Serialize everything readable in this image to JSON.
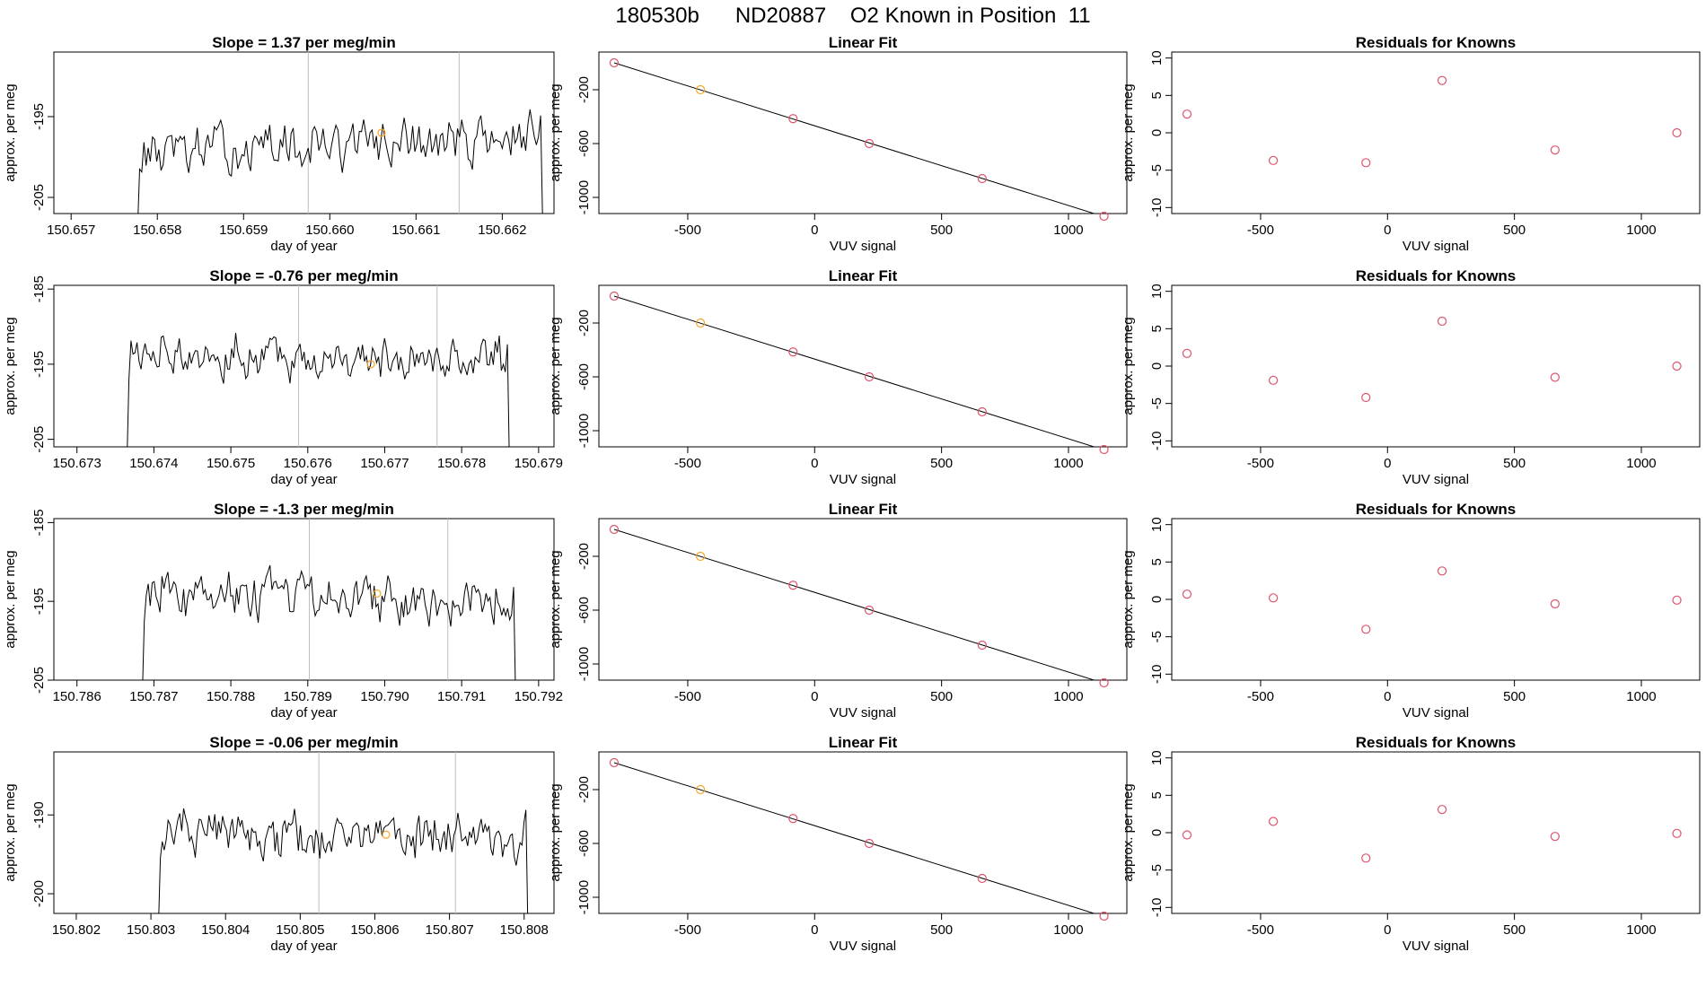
{
  "title": "180530b      ND20887    O2 Known in Position  11",
  "colors": {
    "trace": "#000000",
    "vline": "#bebebe",
    "fit_line": "#000000",
    "known_point": "#df536b",
    "highlight_point": "#f5a623"
  },
  "chart_data": [
    {
      "type": "line",
      "title": "Slope =  1.37  per meg/min",
      "xlabel": "day of year",
      "ylabel": "approx. per meg",
      "xlim": [
        150.6568,
        150.6626
      ],
      "ylim": [
        -207,
        -187
      ],
      "xticks": [
        "150.657",
        "150.658",
        "150.659",
        "150.660",
        "150.661",
        "150.662"
      ],
      "xtick_values": [
        150.657,
        150.658,
        150.659,
        150.66,
        150.661,
        150.662
      ],
      "yticks": [
        "-205",
        "-195"
      ],
      "ytick_values": [
        -205,
        -195
      ],
      "vlines": [
        150.65975,
        150.6615
      ],
      "trace_start": 150.65777,
      "trace_end": 150.66247,
      "trace_mean": -198.5,
      "trace_rise": 1.0,
      "highlight": {
        "x": 150.6606,
        "y": -197.0
      }
    },
    {
      "type": "line",
      "title": "Slope =  -0.76  per meg/min",
      "xlabel": "day of year",
      "ylabel": "approx. per meg",
      "xlim": [
        150.6727,
        150.6792
      ],
      "ylim": [
        -206,
        -184.5
      ],
      "xticks": [
        "150.673",
        "150.674",
        "150.675",
        "150.676",
        "150.677",
        "150.678",
        "150.679"
      ],
      "xtick_values": [
        150.673,
        150.674,
        150.675,
        150.676,
        150.677,
        150.678,
        150.679
      ],
      "yticks": [
        "-205",
        "-195",
        "-185"
      ],
      "ytick_values": [
        -205,
        -195,
        -185
      ],
      "vlines": [
        150.67588,
        150.67768
      ],
      "trace_start": 150.67365,
      "trace_end": 150.67862,
      "trace_mean": -194.0,
      "trace_rise": -0.4,
      "highlight": {
        "x": 150.67682,
        "y": -195.0
      }
    },
    {
      "type": "line",
      "title": "Slope =  -1.3  per meg/min",
      "xlabel": "day of year",
      "ylabel": "approx. per meg",
      "xlim": [
        150.7857,
        150.7922
      ],
      "ylim": [
        -205,
        -184.5
      ],
      "xticks": [
        "150.786",
        "150.787",
        "150.788",
        "150.789",
        "150.790",
        "150.791",
        "150.792"
      ],
      "xtick_values": [
        150.786,
        150.787,
        150.788,
        150.789,
        150.79,
        150.791,
        150.792
      ],
      "yticks": [
        "-205",
        "-195",
        "-185"
      ],
      "ytick_values": [
        -205,
        -195,
        -185
      ],
      "vlines": [
        150.78902,
        150.79082
      ],
      "trace_start": 150.78685,
      "trace_end": 150.7917,
      "trace_mean": -194.5,
      "trace_rise": -0.8,
      "highlight": {
        "x": 150.7899,
        "y": -194.0
      }
    },
    {
      "type": "line",
      "title": "Slope =  -0.06  per meg/min",
      "xlabel": "day of year",
      "ylabel": "approx. per meg",
      "xlim": [
        150.8017,
        150.8084
      ],
      "ylim": [
        -202.5,
        -182
      ],
      "xticks": [
        "150.802",
        "150.803",
        "150.804",
        "150.805",
        "150.806",
        "150.807",
        "150.808"
      ],
      "xtick_values": [
        150.802,
        150.803,
        150.804,
        150.805,
        150.806,
        150.807,
        150.808
      ],
      "yticks": [
        "-200",
        "-190"
      ],
      "ytick_values": [
        -200,
        -190
      ],
      "vlines": [
        150.80525,
        150.80708
      ],
      "trace_start": 150.8031,
      "trace_end": 150.80805,
      "trace_mean": -192.5,
      "trace_rise": 0.0,
      "highlight": {
        "x": 150.80615,
        "y": -192.5
      }
    },
    {
      "type": "scatter",
      "title": "Linear Fit",
      "xlabel": "VUV signal",
      "ylabel": "approx. per meg",
      "xlim": [
        -850,
        1230
      ],
      "ylim": [
        -1120,
        80
      ],
      "xticks": [
        "-500",
        "0",
        "500",
        "1000"
      ],
      "xtick_values": [
        -500,
        0,
        500,
        1000
      ],
      "yticks": [
        "-1000",
        "-600",
        "-200"
      ],
      "ytick_values": [
        -1000,
        -600,
        -200
      ],
      "x": [
        -790,
        -450,
        -85,
        215,
        660,
        1140
      ],
      "y": [
        0,
        -200,
        -415,
        -600,
        -860,
        -1140
      ],
      "highlight_index": 1,
      "fit": {
        "x": [
          -790,
          1160
        ],
        "y": [
          0,
          -1155
        ]
      }
    },
    {
      "type": "scatter",
      "title": "Linear Fit",
      "xlabel": "VUV signal",
      "ylabel": "approx. per meg",
      "xlim": [
        -850,
        1230
      ],
      "ylim": [
        -1120,
        80
      ],
      "xticks": [
        "-500",
        "0",
        "500",
        "1000"
      ],
      "xtick_values": [
        -500,
        0,
        500,
        1000
      ],
      "yticks": [
        "-1000",
        "-600",
        "-200"
      ],
      "ytick_values": [
        -1000,
        -600,
        -200
      ],
      "x": [
        -790,
        -450,
        -85,
        215,
        660,
        1140
      ],
      "y": [
        0,
        -200,
        -415,
        -600,
        -860,
        -1140
      ],
      "highlight_index": 1,
      "fit": {
        "x": [
          -790,
          1160
        ],
        "y": [
          0,
          -1155
        ]
      }
    },
    {
      "type": "scatter",
      "title": "Linear Fit",
      "xlabel": "VUV signal",
      "ylabel": "approx. per meg",
      "xlim": [
        -850,
        1230
      ],
      "ylim": [
        -1120,
        80
      ],
      "xticks": [
        "-500",
        "0",
        "500",
        "1000"
      ],
      "xtick_values": [
        -500,
        0,
        500,
        1000
      ],
      "yticks": [
        "-1000",
        "-600",
        "-200"
      ],
      "ytick_values": [
        -1000,
        -600,
        -200
      ],
      "x": [
        -790,
        -450,
        -85,
        215,
        660,
        1140
      ],
      "y": [
        0,
        -200,
        -415,
        -600,
        -860,
        -1140
      ],
      "highlight_index": 1,
      "fit": {
        "x": [
          -790,
          1160
        ],
        "y": [
          0,
          -1155
        ]
      }
    },
    {
      "type": "scatter",
      "title": "Linear Fit",
      "xlabel": "VUV signal",
      "ylabel": "approx. per meg",
      "xlim": [
        -850,
        1230
      ],
      "ylim": [
        -1120,
        80
      ],
      "xticks": [
        "-500",
        "0",
        "500",
        "1000"
      ],
      "xtick_values": [
        -500,
        0,
        500,
        1000
      ],
      "yticks": [
        "-1000",
        "-600",
        "-200"
      ],
      "ytick_values": [
        -1000,
        -600,
        -200
      ],
      "x": [
        -790,
        -450,
        -85,
        215,
        660,
        1140
      ],
      "y": [
        0,
        -200,
        -415,
        -600,
        -860,
        -1140
      ],
      "highlight_index": 1,
      "fit": {
        "x": [
          -790,
          1160
        ],
        "y": [
          0,
          -1155
        ]
      }
    },
    {
      "type": "scatter",
      "title": "Residuals for Knowns",
      "xlabel": "VUV signal",
      "ylabel": "approx. per meg",
      "xlim": [
        -850,
        1230
      ],
      "ylim": [
        -10.8,
        10.8
      ],
      "xticks": [
        "-500",
        "0",
        "500",
        "1000"
      ],
      "xtick_values": [
        -500,
        0,
        500,
        1000
      ],
      "yticks": [
        "-10",
        "-5",
        "0",
        "5",
        "10"
      ],
      "ytick_values": [
        -10,
        -5,
        0,
        5,
        10
      ],
      "x": [
        -790,
        -450,
        -85,
        215,
        660,
        1140
      ],
      "y": [
        2.5,
        -3.7,
        -4.0,
        7.0,
        -2.3,
        0.0
      ]
    },
    {
      "type": "scatter",
      "title": "Residuals for Knowns",
      "xlabel": "VUV signal",
      "ylabel": "approx. per meg",
      "xlim": [
        -850,
        1230
      ],
      "ylim": [
        -10.8,
        10.8
      ],
      "xticks": [
        "-500",
        "0",
        "500",
        "1000"
      ],
      "xtick_values": [
        -500,
        0,
        500,
        1000
      ],
      "yticks": [
        "-10",
        "-5",
        "0",
        "5",
        "10"
      ],
      "ytick_values": [
        -10,
        -5,
        0,
        5,
        10
      ],
      "x": [
        -790,
        -450,
        -85,
        215,
        660,
        1140
      ],
      "y": [
        1.7,
        -1.9,
        -4.2,
        6.0,
        -1.5,
        0.0
      ]
    },
    {
      "type": "scatter",
      "title": "Residuals for Knowns",
      "xlabel": "VUV signal",
      "ylabel": "approx. per meg",
      "xlim": [
        -850,
        1230
      ],
      "ylim": [
        -10.8,
        10.8
      ],
      "xticks": [
        "-500",
        "0",
        "500",
        "1000"
      ],
      "xtick_values": [
        -500,
        0,
        500,
        1000
      ],
      "yticks": [
        "-10",
        "-5",
        "0",
        "5",
        "10"
      ],
      "ytick_values": [
        -10,
        -5,
        0,
        5,
        10
      ],
      "x": [
        -790,
        -450,
        -85,
        215,
        660,
        1140
      ],
      "y": [
        0.7,
        0.2,
        -4.0,
        3.8,
        -0.6,
        -0.1
      ]
    },
    {
      "type": "scatter",
      "title": "Residuals for Knowns",
      "xlabel": "VUV signal",
      "ylabel": "approx. per meg",
      "xlim": [
        -850,
        1230
      ],
      "ylim": [
        -10.8,
        10.8
      ],
      "xticks": [
        "-500",
        "0",
        "500",
        "1000"
      ],
      "xtick_values": [
        -500,
        0,
        500,
        1000
      ],
      "yticks": [
        "-10",
        "-5",
        "0",
        "5",
        "10"
      ],
      "ytick_values": [
        -10,
        -5,
        0,
        5,
        10
      ],
      "x": [
        -790,
        -450,
        -85,
        215,
        660,
        1140
      ],
      "y": [
        -0.3,
        1.5,
        -3.4,
        3.1,
        -0.5,
        -0.1
      ]
    }
  ]
}
